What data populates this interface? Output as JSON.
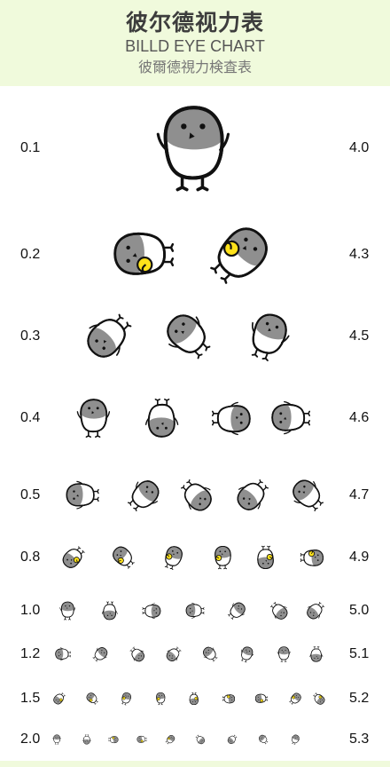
{
  "header": {
    "title": "彼尔德视力表",
    "subtitle": "BILLD EYE CHART",
    "subtitle_alt": "彼爾德視力検査表"
  },
  "colors": {
    "header_bg": "#f0fadc",
    "bird_head": "#8f8f8f",
    "outline": "#111111",
    "accent_yellow": "#ffe21a"
  },
  "rows": [
    {
      "decimal": "0.1",
      "log": "4.0",
      "count": 1,
      "held": [
        false
      ]
    },
    {
      "decimal": "0.2",
      "log": "4.3",
      "count": 2,
      "held": [
        true,
        true
      ]
    },
    {
      "decimal": "0.3",
      "log": "4.5",
      "count": 3,
      "held": [
        false,
        false,
        false
      ]
    },
    {
      "decimal": "0.4",
      "log": "4.6",
      "count": 4,
      "held": [
        false,
        false,
        false,
        false
      ]
    },
    {
      "decimal": "0.5",
      "log": "4.7",
      "count": 5,
      "held": [
        false,
        false,
        false,
        false,
        false
      ]
    },
    {
      "decimal": "0.8",
      "log": "4.9",
      "count": 7,
      "held": [
        true,
        true,
        true,
        true,
        true,
        true,
        true
      ]
    },
    {
      "decimal": "1.0",
      "log": "5.0",
      "count": 8,
      "held": [
        false,
        false,
        false,
        false,
        false,
        false,
        false,
        false
      ]
    },
    {
      "decimal": "1.2",
      "log": "5.1",
      "count": 8,
      "held": [
        false,
        false,
        false,
        false,
        false,
        false,
        false,
        false
      ]
    },
    {
      "decimal": "1.5",
      "log": "5.2",
      "count": 9,
      "held": [
        true,
        true,
        true,
        true,
        true,
        true,
        true,
        true,
        true
      ]
    },
    {
      "decimal": "2.0",
      "log": "5.3",
      "count": 9,
      "held": [
        false,
        false,
        true,
        true,
        true,
        false,
        false,
        false,
        false
      ]
    }
  ]
}
